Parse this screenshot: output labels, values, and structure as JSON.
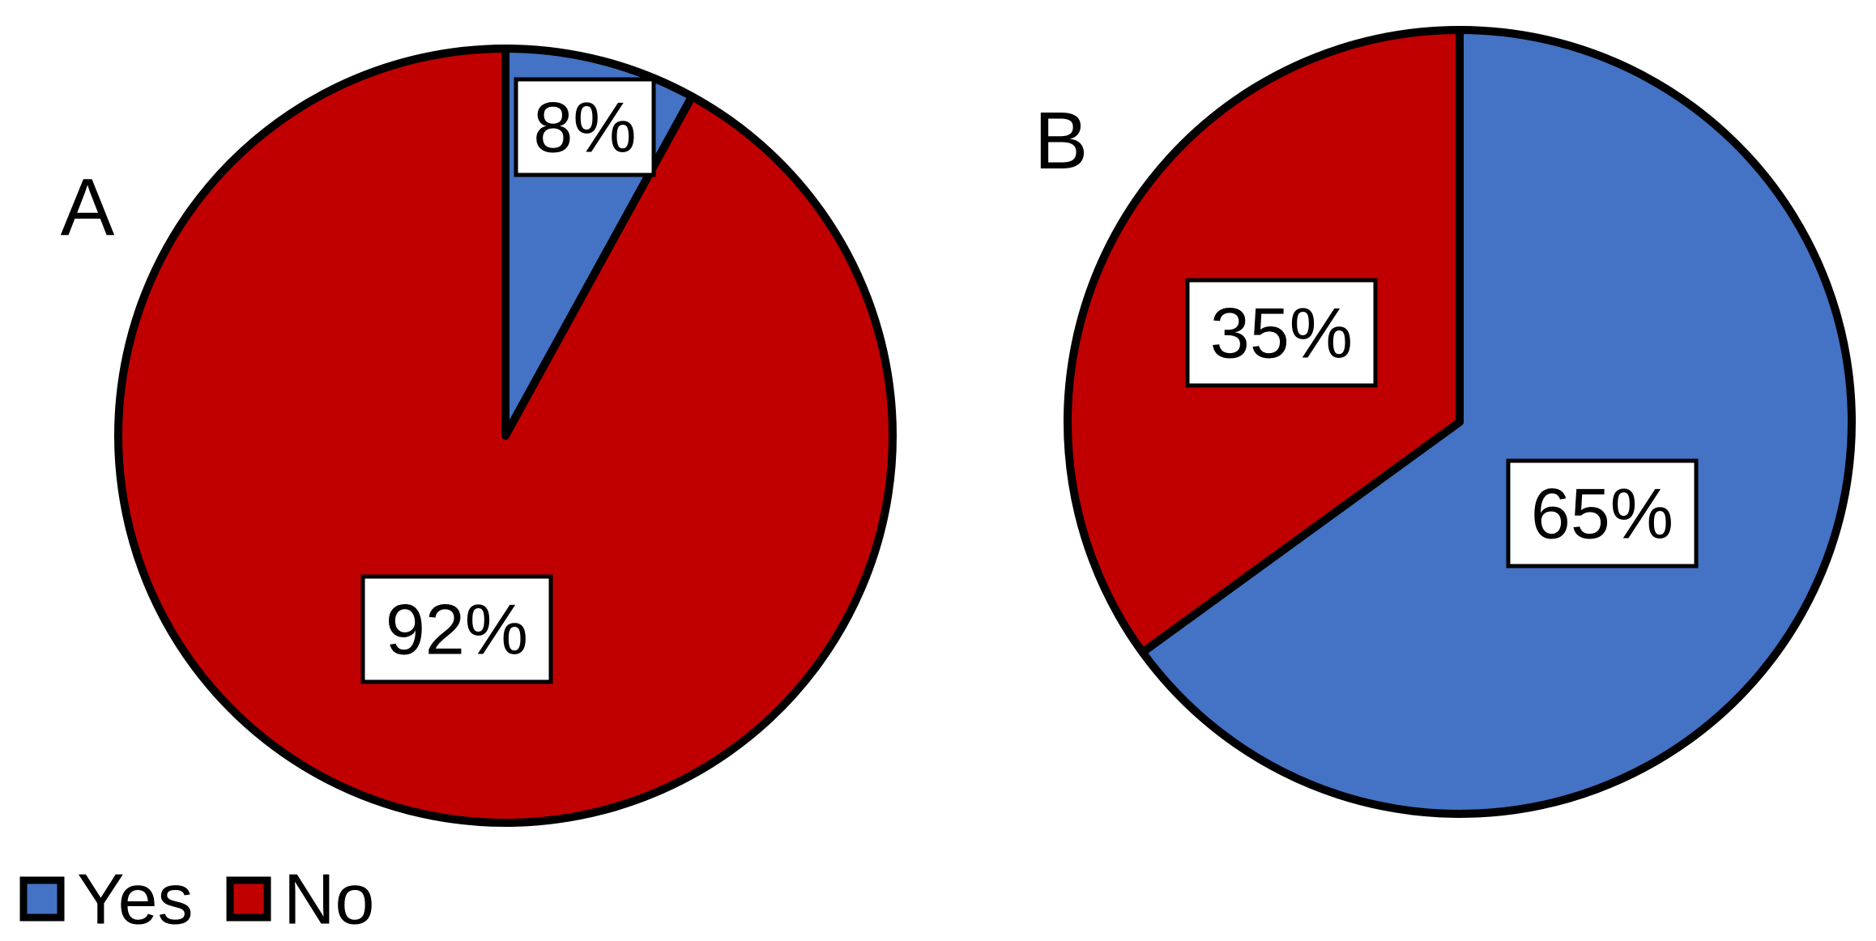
{
  "chart_data": [
    {
      "type": "pie",
      "panel_label": "A",
      "categories": [
        "Yes",
        "No"
      ],
      "values": [
        8,
        92
      ],
      "data_labels": [
        "8%",
        "92%"
      ],
      "colors": [
        "#4472C4",
        "#C00000"
      ],
      "start_angle_deg": 0,
      "direction": "clockwise"
    },
    {
      "type": "pie",
      "panel_label": "B",
      "categories": [
        "Yes",
        "No"
      ],
      "values": [
        65,
        35
      ],
      "data_labels": [
        "65%",
        "35%"
      ],
      "colors": [
        "#4472C4",
        "#C00000"
      ],
      "start_angle_deg": 0,
      "direction": "clockwise"
    }
  ],
  "legend": {
    "placement": "bottom-left",
    "items": [
      {
        "label": "Yes",
        "color": "#4472C4"
      },
      {
        "label": "No",
        "color": "#C00000"
      }
    ]
  }
}
